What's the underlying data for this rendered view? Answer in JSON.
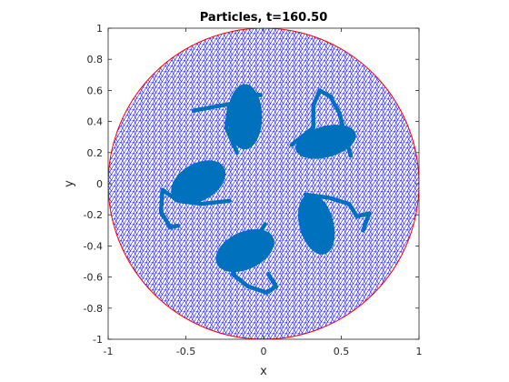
{
  "chart_data": {
    "type": "scatter",
    "title": "Particles, t=160.50",
    "xlabel": "x",
    "ylabel": "y",
    "xlim": [
      -1,
      1
    ],
    "ylim": [
      -1,
      1
    ],
    "x_ticks": [
      -1,
      -0.5,
      0,
      0.5,
      1
    ],
    "x_tick_labels": [
      "-1",
      "-0.5",
      "0",
      "0.5",
      "1"
    ],
    "y_ticks": [
      1,
      0.8,
      0.6,
      0.4,
      0.2,
      0,
      -0.2,
      -0.4,
      -0.6,
      -0.8,
      -1
    ],
    "y_tick_labels": [
      "1",
      "0.8",
      "0.6",
      "0.4",
      "0.2",
      "0",
      "-0.2",
      "-0.4",
      "-0.6",
      "-0.8",
      "-1"
    ],
    "grid": false,
    "boundary": {
      "shape": "circle",
      "center": [
        0,
        0
      ],
      "radius": 1,
      "color": "#ff0000"
    },
    "mesh": {
      "color": "#0000ff",
      "fill": "#ffffff"
    },
    "particles": {
      "color": "#0072bd",
      "clusters": [
        {
          "name": "cluster-top",
          "center": [
            -0.12,
            0.43
          ],
          "size": [
            0.11,
            0.21
          ],
          "rotation_deg": 0,
          "tail": [
            [
              -0.17,
              0.2
            ],
            [
              -0.24,
              0.36
            ],
            [
              -0.22,
              0.5
            ],
            [
              -0.12,
              0.58
            ],
            [
              -0.02,
              0.57
            ],
            [
              -0.12,
              0.56
            ],
            [
              -0.18,
              0.52
            ],
            [
              -0.34,
              0.49
            ],
            [
              -0.45,
              0.47
            ]
          ]
        },
        {
          "name": "cluster-right",
          "center": [
            0.4,
            0.27
          ],
          "size": [
            0.2,
            0.1
          ],
          "rotation_deg": -15,
          "tail": [
            [
              0.18,
              0.25
            ],
            [
              0.32,
              0.36
            ],
            [
              0.32,
              0.5
            ],
            [
              0.36,
              0.6
            ],
            [
              0.43,
              0.56
            ],
            [
              0.49,
              0.45
            ],
            [
              0.52,
              0.32
            ],
            [
              0.56,
              0.18
            ]
          ]
        },
        {
          "name": "cluster-left",
          "center": [
            -0.42,
            0.01
          ],
          "size": [
            0.19,
            0.12
          ],
          "rotation_deg": -30,
          "tail": [
            [
              -0.22,
              -0.11
            ],
            [
              -0.4,
              -0.13
            ],
            [
              -0.55,
              -0.11
            ],
            [
              -0.65,
              -0.04
            ],
            [
              -0.66,
              -0.18
            ],
            [
              -0.6,
              -0.28
            ],
            [
              -0.55,
              -0.27
            ]
          ]
        },
        {
          "name": "cluster-bottom-right",
          "center": [
            0.34,
            -0.26
          ],
          "size": [
            0.11,
            0.2
          ],
          "rotation_deg": -15,
          "tail": [
            [
              0.27,
              -0.07
            ],
            [
              0.42,
              -0.09
            ],
            [
              0.55,
              -0.13
            ],
            [
              0.6,
              -0.21
            ],
            [
              0.68,
              -0.19
            ],
            [
              0.64,
              -0.3
            ]
          ]
        },
        {
          "name": "cluster-bottom",
          "center": [
            -0.12,
            -0.43
          ],
          "size": [
            0.2,
            0.12
          ],
          "rotation_deg": -25,
          "tail": [
            [
              0.01,
              -0.26
            ],
            [
              -0.2,
              -0.58
            ],
            [
              -0.1,
              -0.66
            ],
            [
              0.02,
              -0.7
            ],
            [
              0.08,
              -0.66
            ],
            [
              0.03,
              -0.58
            ]
          ]
        }
      ]
    }
  }
}
